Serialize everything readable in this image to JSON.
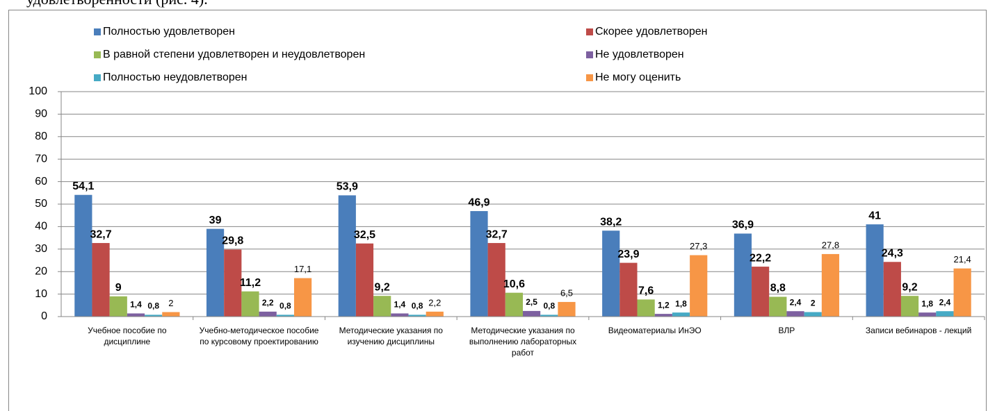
{
  "page_text": "удовлетворенности (рис. 4).",
  "chart_data": {
    "type": "bar",
    "categories": [
      "Учебное пособие по дисциплине",
      "Учебно-методическое пособие по курсовому проектированию",
      "Методические указания по изучению дисциплины",
      "Методические указания по выполнению лабораторных работ",
      "Видеоматериалы ИнЭО",
      "ВЛР",
      "Записи вебинаров - лекций"
    ],
    "series": [
      {
        "name": "Полностью удовлетворен",
        "color": "#4a7ebb",
        "label_bold": true,
        "values": [
          54.1,
          39,
          53.9,
          46.9,
          38.2,
          36.9,
          41
        ],
        "value_labels": [
          "54,1",
          "39",
          "53,9",
          "46,9",
          "38,2",
          "36,9",
          "41"
        ]
      },
      {
        "name": "Скорее удовлетворен",
        "color": "#be4b48",
        "label_bold": true,
        "values": [
          32.7,
          29.8,
          32.5,
          32.7,
          23.9,
          22.2,
          24.3
        ],
        "value_labels": [
          "32,7",
          "29,8",
          "32,5",
          "32,7",
          "23,9",
          "22,2",
          "24,3"
        ]
      },
      {
        "name": "В равной степени удовлетворен и неудовлетворен",
        "color": "#98b954",
        "label_bold": true,
        "values": [
          9,
          11.2,
          9.2,
          10.6,
          7.6,
          8.8,
          9.2
        ],
        "value_labels": [
          "9",
          "11,2",
          "9,2",
          "10,6",
          "7,6",
          "8,8",
          "9,2"
        ]
      },
      {
        "name": "Не удовлетворен",
        "color": "#7d60a0",
        "label_bold": true,
        "values": [
          1.4,
          2.2,
          1.4,
          2.5,
          1.2,
          2.4,
          1.8
        ],
        "value_labels": [
          "1,4",
          "2,2",
          "1,4",
          "2,5",
          "1,2",
          "2,4",
          "1,8"
        ]
      },
      {
        "name": "Полностью неудовлетворен",
        "color": "#46aac5",
        "label_bold": true,
        "values": [
          0.8,
          0.8,
          0.8,
          0.8,
          1.8,
          2,
          2.4
        ],
        "value_labels": [
          "0,8",
          "0,8",
          "0,8",
          "0,8",
          "1,8",
          "2",
          "2,4"
        ]
      },
      {
        "name": "Не могу оценить",
        "color": "#f79646",
        "label_bold": false,
        "values": [
          2,
          17.1,
          2.2,
          6.5,
          27.3,
          27.8,
          21.4
        ],
        "value_labels": [
          "2",
          "17,1",
          "2,2",
          "6,5",
          "27,3",
          "27,8",
          "21,4"
        ]
      }
    ],
    "ylim": [
      0,
      100
    ],
    "yticks": [
      0,
      10,
      20,
      30,
      40,
      50,
      60,
      70,
      80,
      90,
      100
    ],
    "grid": true,
    "legend": "top"
  }
}
